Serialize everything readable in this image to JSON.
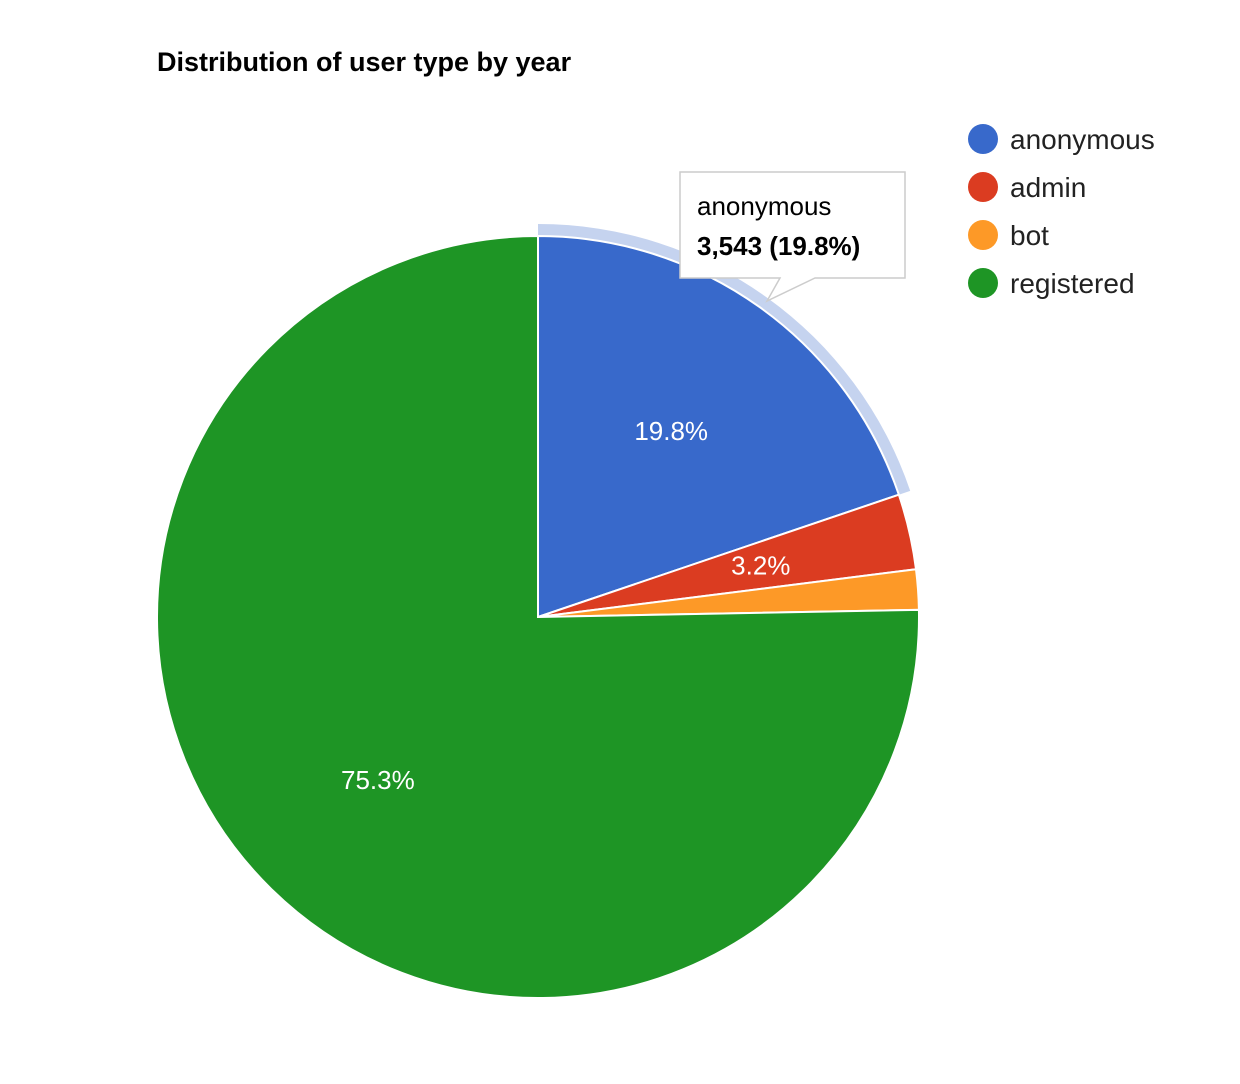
{
  "chart_data": {
    "type": "pie",
    "title": "Distribution of user type by year",
    "slices": [
      {
        "label": "anonymous",
        "percent": 19.8,
        "percent_label": "19.8%",
        "color": "#3869cb"
      },
      {
        "label": "admin",
        "percent": 3.2,
        "percent_label": "3.2%",
        "color": "#db3c21"
      },
      {
        "label": "bot",
        "percent": 1.7,
        "percent_label": "",
        "color": "#fd9927"
      },
      {
        "label": "registered",
        "percent": 75.3,
        "percent_label": "75.3%",
        "color": "#1e9525"
      }
    ],
    "legend_position": "right",
    "tooltip": {
      "label": "anonymous",
      "value_text": "3,543 (19.8%)",
      "highlight_color": "#c5d3ef"
    }
  }
}
